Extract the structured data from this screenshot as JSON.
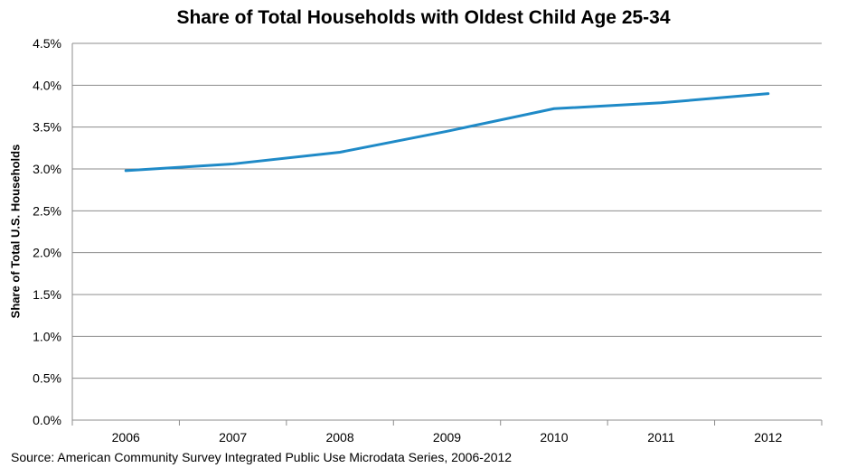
{
  "chart_data": {
    "type": "line",
    "title": "Share of Total Households with Oldest Child Age 25-34",
    "ylabel": "Share of Total U.S. Households",
    "xlabel": "",
    "source": "Source: American Community Survey Integrated Public Use Microdata Series, 2006-2012",
    "categories": [
      "2006",
      "2007",
      "2008",
      "2009",
      "2010",
      "2011",
      "2012"
    ],
    "series": [
      {
        "values": [
          2.98,
          3.06,
          3.2,
          3.45,
          3.72,
          3.79,
          3.9
        ]
      }
    ],
    "ylim": [
      0,
      4.5
    ],
    "yticks": [
      "0.0%",
      "0.5%",
      "1.0%",
      "1.5%",
      "2.0%",
      "2.5%",
      "3.0%",
      "3.5%",
      "4.0%",
      "4.5%"
    ],
    "grid": true,
    "legend": "none",
    "line_color": "#1f8ac7",
    "grid_color": "#8c8c8c"
  }
}
